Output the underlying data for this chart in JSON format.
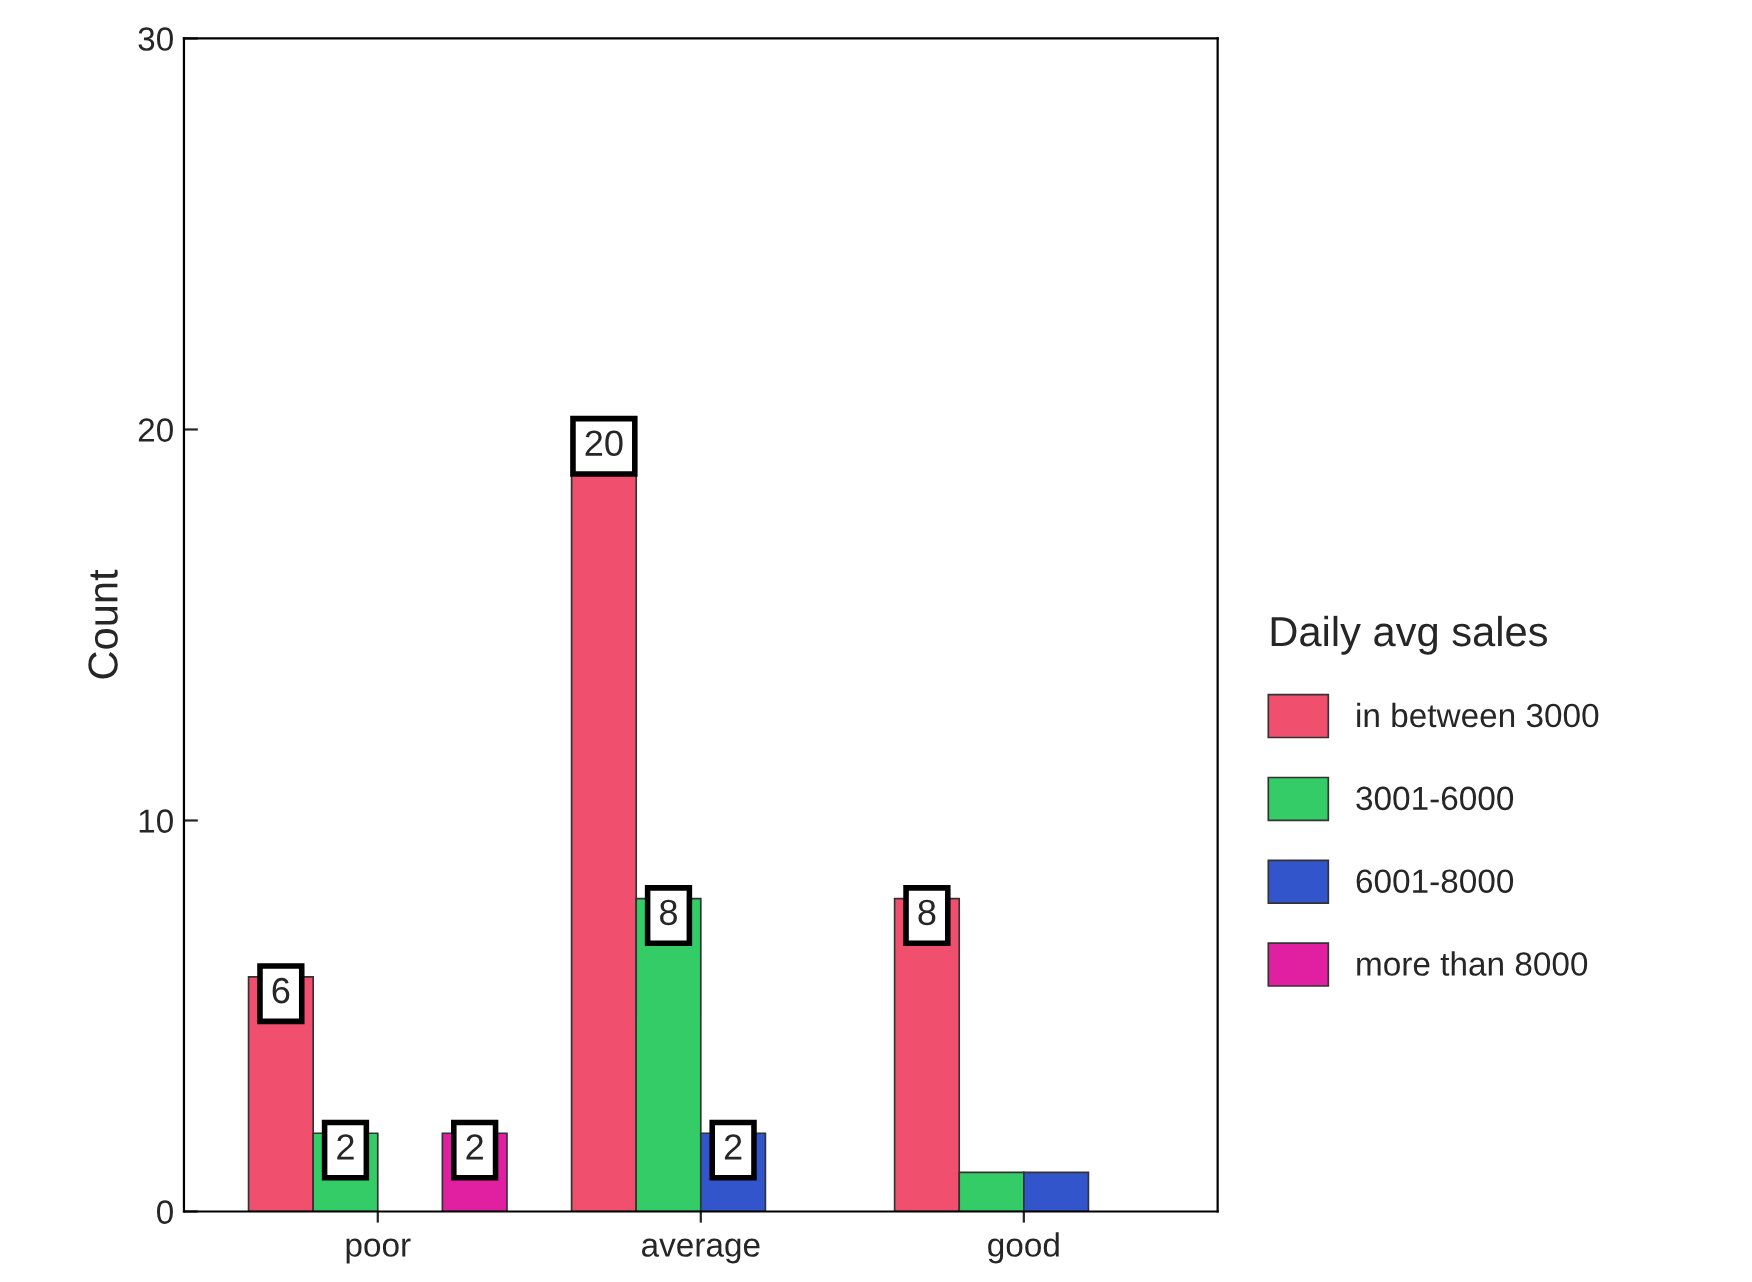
{
  "chart_data": {
    "type": "bar",
    "ylabel": "Count",
    "legend_title": "Daily avg sales",
    "categories": [
      "poor",
      "average",
      "good"
    ],
    "series": [
      {
        "name": "in between 3000",
        "color": "#f0506e",
        "values": [
          6,
          20,
          8
        ],
        "value_labels": [
          "6",
          "20",
          "8"
        ]
      },
      {
        "name": "3001-6000",
        "color": "#33cc66",
        "values": [
          2,
          8,
          1
        ],
        "value_labels": [
          "2",
          "8",
          null
        ]
      },
      {
        "name": "6001-8000",
        "color": "#3355cc",
        "values": [
          null,
          2,
          1
        ],
        "value_labels": [
          null,
          "2",
          null
        ]
      },
      {
        "name": "more than 8000",
        "color": "#e020a0",
        "values": [
          2,
          null,
          null
        ],
        "value_labels": [
          "2",
          null,
          null
        ]
      }
    ],
    "ylim": [
      0,
      30
    ],
    "yticks": [
      0,
      10,
      20,
      30
    ],
    "grid": false,
    "legend": "right"
  }
}
